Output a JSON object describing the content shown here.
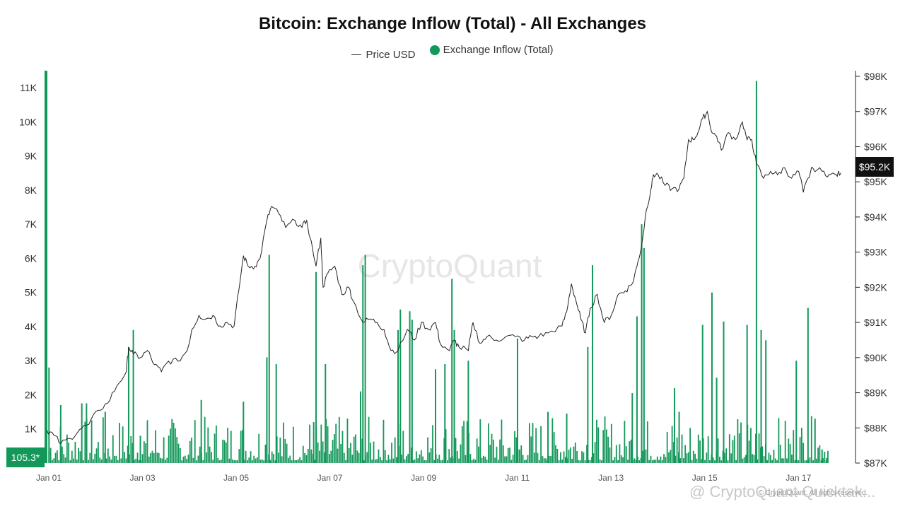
{
  "chart_data": {
    "type": "bar",
    "title": "Bitcoin: Exchange Inflow (Total) - All Exchanges",
    "legend": [
      {
        "name": "Price USD",
        "color": "#222222",
        "style": "line"
      },
      {
        "name": "Exchange Inflow (Total)",
        "color": "#14985a",
        "style": "dot"
      }
    ],
    "legend_placement": "top-center",
    "x_range": [
      0,
      16.6
    ],
    "x_ticks": [
      {
        "pos": 0,
        "label": "Jan 01"
      },
      {
        "pos": 2,
        "label": "Jan 03"
      },
      {
        "pos": 4,
        "label": "Jan 05"
      },
      {
        "pos": 6,
        "label": "Jan 07"
      },
      {
        "pos": 8,
        "label": "Jan 09"
      },
      {
        "pos": 10,
        "label": "Jan 11"
      },
      {
        "pos": 12,
        "label": "Jan 13"
      },
      {
        "pos": 14,
        "label": "Jan 15"
      },
      {
        "pos": 16,
        "label": "Jan 17"
      }
    ],
    "y_left": {
      "ylim": [
        0,
        11500
      ],
      "ticks": [
        {
          "v": 1000,
          "label": "1K"
        },
        {
          "v": 2000,
          "label": "2K"
        },
        {
          "v": 3000,
          "label": "3K"
        },
        {
          "v": 4000,
          "label": "4K"
        },
        {
          "v": 5000,
          "label": "5K"
        },
        {
          "v": 6000,
          "label": "6K"
        },
        {
          "v": 7000,
          "label": "7K"
        },
        {
          "v": 8000,
          "label": "8K"
        },
        {
          "v": 9000,
          "label": "9K"
        },
        {
          "v": 10000,
          "label": "10K"
        },
        {
          "v": 11000,
          "label": "11K"
        }
      ]
    },
    "y_right": {
      "ylim": [
        87000,
        98000
      ],
      "ticks": [
        {
          "v": 87000,
          "label": "$87K"
        },
        {
          "v": 88000,
          "label": "$88K"
        },
        {
          "v": 89000,
          "label": "$89K"
        },
        {
          "v": 90000,
          "label": "$90K"
        },
        {
          "v": 91000,
          "label": "$91K"
        },
        {
          "v": 92000,
          "label": "$92K"
        },
        {
          "v": 93000,
          "label": "$93K"
        },
        {
          "v": 94000,
          "label": "$94K"
        },
        {
          "v": 95000,
          "label": "$95K"
        },
        {
          "v": 96000,
          "label": "$96K"
        },
        {
          "v": 97000,
          "label": "$97K"
        },
        {
          "v": 98000,
          "label": "$98K"
        }
      ]
    },
    "grid": false,
    "inflow_spikes": [
      [
        0.0,
        11500
      ],
      [
        0.05,
        2800
      ],
      [
        0.3,
        1700
      ],
      [
        0.75,
        1750
      ],
      [
        0.85,
        1750
      ],
      [
        1.25,
        1500
      ],
      [
        1.75,
        3400
      ],
      [
        1.85,
        3900
      ],
      [
        2.0,
        800
      ],
      [
        3.3,
        1850
      ],
      [
        4.2,
        1800
      ],
      [
        4.7,
        3100
      ],
      [
        4.75,
        6100
      ],
      [
        4.9,
        2900
      ],
      [
        5.7,
        1200
      ],
      [
        5.75,
        5600
      ],
      [
        5.95,
        2900
      ],
      [
        6.7,
        2100
      ],
      [
        6.75,
        5800
      ],
      [
        6.8,
        6100
      ],
      [
        7.5,
        3900
      ],
      [
        7.55,
        4500
      ],
      [
        7.75,
        4450
      ],
      [
        7.8,
        4200
      ],
      [
        8.3,
        2750
      ],
      [
        8.5,
        2900
      ],
      [
        8.65,
        5400
      ],
      [
        8.7,
        3900
      ],
      [
        9.0,
        3000
      ],
      [
        10.05,
        3650
      ],
      [
        10.7,
        1500
      ],
      [
        11.1,
        1450
      ],
      [
        11.55,
        3400
      ],
      [
        11.65,
        5800
      ],
      [
        12.5,
        2050
      ],
      [
        12.6,
        4300
      ],
      [
        12.7,
        7000
      ],
      [
        12.75,
        6300
      ],
      [
        13.4,
        2200
      ],
      [
        13.5,
        1500
      ],
      [
        14.0,
        4050
      ],
      [
        14.2,
        5000
      ],
      [
        14.3,
        2500
      ],
      [
        14.45,
        4150
      ],
      [
        14.95,
        4050
      ],
      [
        15.15,
        11200
      ],
      [
        15.25,
        3900
      ],
      [
        15.35,
        3600
      ],
      [
        16.0,
        3000
      ],
      [
        16.25,
        4550
      ],
      [
        16.4,
        1300
      ],
      [
        16.55,
        400
      ],
      [
        16.65,
        150
      ]
    ],
    "price_series": [
      [
        0.0,
        87950
      ],
      [
        0.15,
        87800
      ],
      [
        0.3,
        87550
      ],
      [
        0.5,
        87700
      ],
      [
        0.7,
        87950
      ],
      [
        0.9,
        88100
      ],
      [
        1.1,
        88500
      ],
      [
        1.3,
        88700
      ],
      [
        1.5,
        89200
      ],
      [
        1.7,
        89600
      ],
      [
        1.75,
        90300
      ],
      [
        1.85,
        90100
      ],
      [
        2.0,
        90000
      ],
      [
        2.15,
        90200
      ],
      [
        2.3,
        89800
      ],
      [
        2.45,
        89600
      ],
      [
        2.6,
        89900
      ],
      [
        2.8,
        89900
      ],
      [
        3.0,
        90200
      ],
      [
        3.1,
        90800
      ],
      [
        3.25,
        91200
      ],
      [
        3.4,
        91100
      ],
      [
        3.55,
        91200
      ],
      [
        3.7,
        90900
      ],
      [
        3.85,
        91000
      ],
      [
        4.0,
        90900
      ],
      [
        4.1,
        91900
      ],
      [
        4.2,
        92900
      ],
      [
        4.3,
        92600
      ],
      [
        4.45,
        92600
      ],
      [
        4.55,
        92800
      ],
      [
        4.7,
        93900
      ],
      [
        4.8,
        94300
      ],
      [
        4.95,
        94100
      ],
      [
        5.1,
        93700
      ],
      [
        5.3,
        93900
      ],
      [
        5.45,
        93700
      ],
      [
        5.55,
        93900
      ],
      [
        5.75,
        92600
      ],
      [
        5.85,
        93400
      ],
      [
        5.9,
        92000
      ],
      [
        6.0,
        92400
      ],
      [
        6.15,
        92600
      ],
      [
        6.3,
        91800
      ],
      [
        6.45,
        92000
      ],
      [
        6.55,
        91600
      ],
      [
        6.75,
        91000
      ],
      [
        6.9,
        91100
      ],
      [
        7.05,
        91000
      ],
      [
        7.2,
        90800
      ],
      [
        7.35,
        90200
      ],
      [
        7.5,
        90200
      ],
      [
        7.7,
        90800
      ],
      [
        7.85,
        90500
      ],
      [
        8.0,
        91000
      ],
      [
        8.15,
        90800
      ],
      [
        8.3,
        91000
      ],
      [
        8.4,
        90400
      ],
      [
        8.6,
        90200
      ],
      [
        8.7,
        90500
      ],
      [
        8.8,
        90300
      ],
      [
        9.0,
        90200
      ],
      [
        9.1,
        91000
      ],
      [
        9.25,
        90400
      ],
      [
        9.4,
        90600
      ],
      [
        9.6,
        90500
      ],
      [
        9.8,
        90600
      ],
      [
        10.0,
        90600
      ],
      [
        10.2,
        90500
      ],
      [
        10.35,
        90600
      ],
      [
        10.5,
        90600
      ],
      [
        10.7,
        90700
      ],
      [
        11.0,
        90900
      ],
      [
        11.1,
        91300
      ],
      [
        11.2,
        92100
      ],
      [
        11.3,
        91600
      ],
      [
        11.4,
        91100
      ],
      [
        11.5,
        90700
      ],
      [
        11.6,
        91400
      ],
      [
        11.75,
        91800
      ],
      [
        11.9,
        91000
      ],
      [
        12.05,
        91200
      ],
      [
        12.2,
        91800
      ],
      [
        12.35,
        91900
      ],
      [
        12.5,
        92100
      ],
      [
        12.6,
        92600
      ],
      [
        12.7,
        93200
      ],
      [
        12.8,
        94200
      ],
      [
        12.9,
        94800
      ],
      [
        12.95,
        95200
      ],
      [
        13.05,
        95200
      ],
      [
        13.2,
        94900
      ],
      [
        13.35,
        94800
      ],
      [
        13.5,
        94800
      ],
      [
        13.6,
        95100
      ],
      [
        13.7,
        96200
      ],
      [
        13.8,
        96200
      ],
      [
        13.9,
        96400
      ],
      [
        14.0,
        96800
      ],
      [
        14.1,
        97000
      ],
      [
        14.2,
        96400
      ],
      [
        14.3,
        96300
      ],
      [
        14.4,
        95900
      ],
      [
        14.55,
        96400
      ],
      [
        14.7,
        96200
      ],
      [
        14.85,
        96700
      ],
      [
        14.95,
        96200
      ],
      [
        15.05,
        96200
      ],
      [
        15.15,
        95500
      ],
      [
        15.3,
        95100
      ],
      [
        15.45,
        95300
      ],
      [
        15.6,
        95200
      ],
      [
        15.75,
        95400
      ],
      [
        15.9,
        95100
      ],
      [
        16.05,
        95300
      ],
      [
        16.15,
        94700
      ],
      [
        16.25,
        95100
      ],
      [
        16.35,
        95400
      ],
      [
        16.55,
        95300
      ],
      [
        16.7,
        95200
      ],
      [
        16.85,
        95200
      ],
      [
        16.95,
        95250
      ]
    ],
    "current_inflow_label": "105.3*",
    "current_price_label": "$95.2K"
  },
  "watermark": "CryptoQuant",
  "footer": {
    "brand": "@ CryptoQuant Quicktak...",
    "rights": "© CryptoQuant. All rights reserved."
  },
  "colors": {
    "bar": "#14985a",
    "price": "#222222",
    "price_tag_bg": "#111111"
  }
}
